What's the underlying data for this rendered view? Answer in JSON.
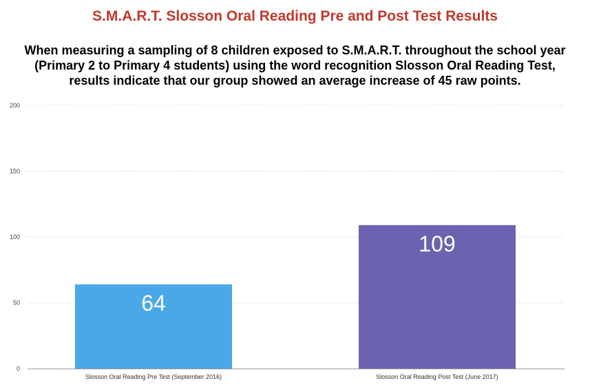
{
  "chart_data": {
    "type": "bar",
    "title": "S.M.A.R.T. Slosson Oral Reading Pre and Post Test Results",
    "subtitle": "When measuring a sampling of 8 children exposed to  S.M.A.R.T. throughout the school year (Primary 2 to Primary 4 students) using the word recognition Slosson Oral Reading Test, results indicate that our group showed an average increase of 45 raw points.",
    "categories": [
      "Slosson Oral Reading Pre Test (September 2016)",
      "Slosson Oral Reading Post Test (June 2017)"
    ],
    "values": [
      64,
      109
    ],
    "data_labels": [
      "64",
      "109"
    ],
    "bar_colors": [
      "#4aa8e8",
      "#6b62b0"
    ],
    "xlabel": "",
    "ylabel": "",
    "ylim": [
      0,
      200
    ],
    "yticks": [
      0,
      50,
      100,
      150,
      200
    ],
    "ytick_labels": [
      "0",
      "50",
      "100",
      "150",
      "200"
    ],
    "grid": true,
    "legend": "none"
  }
}
